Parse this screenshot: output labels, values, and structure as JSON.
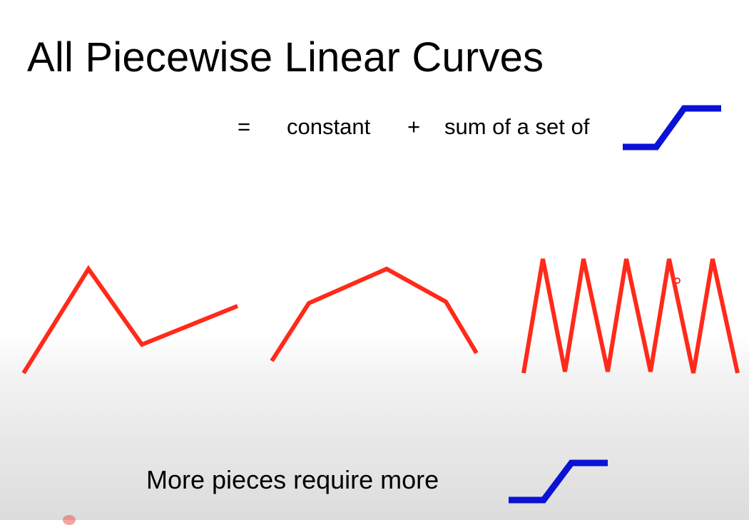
{
  "slide": {
    "title": "All Piecewise Linear Curves",
    "equation": {
      "equals": "=",
      "constant": "constant",
      "plus": "+",
      "sum": "sum of a set of"
    },
    "bottom_text": "More pieces require more"
  },
  "icons": {
    "step_function": "hard-sigmoid-step-icon",
    "step_function_bottom": "hard-sigmoid-step-icon"
  },
  "colors": {
    "curve": "#ff2a1a",
    "step": "#0a12d6",
    "text": "#000000",
    "cursor": "#e53935"
  }
}
